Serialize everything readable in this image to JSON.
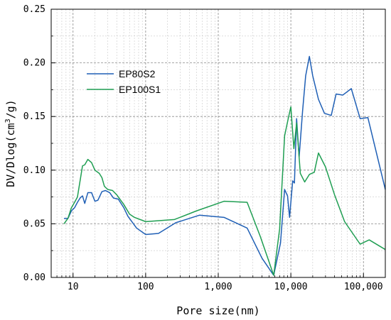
{
  "chart_data": {
    "type": "line",
    "xscale": "log",
    "xlim": [
      5,
      200000
    ],
    "ylim": [
      0,
      0.25
    ],
    "xlabel": "Pore size(nm)",
    "ylabel": "DV/Dlog(cm",
    "ylabel_sup": "3",
    "ylabel_suffix": "/g)",
    "grid": true,
    "legend_position": "upper-left",
    "x_ticks": [
      {
        "value": 10,
        "label": "10"
      },
      {
        "value": 100,
        "label": "100"
      },
      {
        "value": 1000,
        "label": "1,000"
      },
      {
        "value": 10000,
        "label": "10,000"
      },
      {
        "value": 100000,
        "label": "100,000"
      }
    ],
    "y_ticks": [
      {
        "value": 0,
        "label": "0.00"
      },
      {
        "value": 0.05,
        "label": "0.05"
      },
      {
        "value": 0.1,
        "label": "0.10"
      },
      {
        "value": 0.15,
        "label": "0.15"
      },
      {
        "value": 0.2,
        "label": "0.20"
      },
      {
        "value": 0.25,
        "label": "0.25"
      }
    ],
    "series": [
      {
        "name": "EP80S2",
        "color": "#1f5fb5",
        "points": [
          [
            7.5,
            0.055
          ],
          [
            8.5,
            0.055
          ],
          [
            9.5,
            0.062
          ],
          [
            10.5,
            0.065
          ],
          [
            11.5,
            0.07
          ],
          [
            12.5,
            0.074
          ],
          [
            13.5,
            0.076
          ],
          [
            14.5,
            0.069
          ],
          [
            16,
            0.079
          ],
          [
            18,
            0.079
          ],
          [
            20,
            0.071
          ],
          [
            22,
            0.072
          ],
          [
            25,
            0.08
          ],
          [
            28,
            0.081
          ],
          [
            32,
            0.079
          ],
          [
            36,
            0.074
          ],
          [
            42,
            0.073
          ],
          [
            50,
            0.065
          ],
          [
            57,
            0.057
          ],
          [
            75,
            0.046
          ],
          [
            100,
            0.04
          ],
          [
            150,
            0.041
          ],
          [
            260,
            0.051
          ],
          [
            550,
            0.058
          ],
          [
            1200,
            0.056
          ],
          [
            2500,
            0.046
          ],
          [
            4000,
            0.018
          ],
          [
            5800,
            0.002
          ],
          [
            7200,
            0.032
          ],
          [
            8200,
            0.082
          ],
          [
            9000,
            0.076
          ],
          [
            9600,
            0.056
          ],
          [
            10600,
            0.09
          ],
          [
            11200,
            0.088
          ],
          [
            12000,
            0.148
          ],
          [
            13000,
            0.112
          ],
          [
            14500,
            0.155
          ],
          [
            16000,
            0.188
          ],
          [
            18000,
            0.206
          ],
          [
            20000,
            0.188
          ],
          [
            24000,
            0.166
          ],
          [
            29000,
            0.153
          ],
          [
            36000,
            0.151
          ],
          [
            42000,
            0.171
          ],
          [
            52000,
            0.17
          ],
          [
            68000,
            0.176
          ],
          [
            90000,
            0.148
          ],
          [
            115000,
            0.149
          ],
          [
            200000,
            0.082
          ]
        ]
      },
      {
        "name": "EP100S1",
        "color": "#1f9e52",
        "points": [
          [
            7.5,
            0.05
          ],
          [
            8.5,
            0.055
          ],
          [
            9.5,
            0.065
          ],
          [
            10.5,
            0.07
          ],
          [
            11.5,
            0.075
          ],
          [
            12.5,
            0.09
          ],
          [
            13.5,
            0.104
          ],
          [
            14.5,
            0.105
          ],
          [
            16,
            0.11
          ],
          [
            18,
            0.107
          ],
          [
            20,
            0.1
          ],
          [
            23,
            0.097
          ],
          [
            25,
            0.093
          ],
          [
            27,
            0.085
          ],
          [
            30,
            0.082
          ],
          [
            35,
            0.081
          ],
          [
            40,
            0.077
          ],
          [
            50,
            0.068
          ],
          [
            60,
            0.059
          ],
          [
            70,
            0.056
          ],
          [
            100,
            0.052
          ],
          [
            250,
            0.054
          ],
          [
            500,
            0.062
          ],
          [
            1200,
            0.071
          ],
          [
            2500,
            0.07
          ],
          [
            3800,
            0.038
          ],
          [
            5800,
            0.002
          ],
          [
            7000,
            0.045
          ],
          [
            8200,
            0.132
          ],
          [
            9200,
            0.148
          ],
          [
            10000,
            0.159
          ],
          [
            11000,
            0.12
          ],
          [
            12000,
            0.144
          ],
          [
            13500,
            0.097
          ],
          [
            15500,
            0.089
          ],
          [
            18000,
            0.096
          ],
          [
            21000,
            0.098
          ],
          [
            24000,
            0.116
          ],
          [
            30000,
            0.103
          ],
          [
            40000,
            0.077
          ],
          [
            55000,
            0.052
          ],
          [
            90000,
            0.031
          ],
          [
            120000,
            0.035
          ],
          [
            200000,
            0.026
          ]
        ]
      }
    ]
  }
}
